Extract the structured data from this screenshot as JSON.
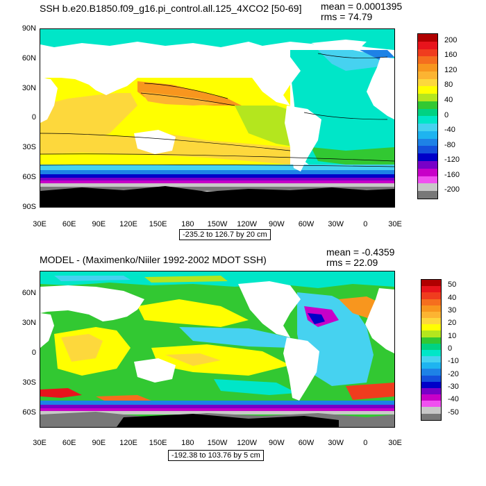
{
  "panels": [
    {
      "title": "SSH b.e20.B1850.f09_g16.pi_control.all.125_4XCO2 [50-69]",
      "mean": "mean = 0.0001395",
      "rms": "rms = 74.79",
      "lat_labels": [
        "90N",
        "60N",
        "30N",
        "0",
        "30S",
        "60S",
        "90S"
      ],
      "lon_labels": [
        "30E",
        "60E",
        "90E",
        "120E",
        "150E",
        "180",
        "150W",
        "120W",
        "90W",
        "60W",
        "30W",
        "0",
        "30E"
      ],
      "range_text": "-235.2 to 126.7 by 20 cm",
      "colorbar": {
        "labels": [
          "200",
          "160",
          "120",
          "80",
          "40",
          "0",
          "-40",
          "-80",
          "-120",
          "-160",
          "-200"
        ],
        "colors": [
          "#b00000",
          "#e8141c",
          "#f03c1e",
          "#f56e1e",
          "#f8961e",
          "#fcb432",
          "#fdd83c",
          "#ffff00",
          "#b4e61e",
          "#32c832",
          "#00d282",
          "#00e6c8",
          "#46d2f0",
          "#1eb4f0",
          "#1e82e6",
          "#1450dc",
          "#0000c8",
          "#7800c8",
          "#c800c8",
          "#f050f0",
          "#c8c8c8",
          "#787878"
        ]
      }
    },
    {
      "title": "MODEL - (Maximenko/Niiler 1992-2002 MDOT SSH)",
      "mean": "mean = -0.4359",
      "rms": "rms = 22.09",
      "lat_labels": [
        "60N",
        "30N",
        "0",
        "30S",
        "60S"
      ],
      "lon_labels": [
        "30E",
        "60E",
        "90E",
        "120E",
        "150E",
        "180",
        "150W",
        "120W",
        "90W",
        "60W",
        "30W",
        "0",
        "30E"
      ],
      "range_text": "-192.38 to 103.76 by 5 cm",
      "colorbar": {
        "labels": [
          "50",
          "40",
          "30",
          "20",
          "10",
          "0",
          "-10",
          "-20",
          "-30",
          "-40",
          "-50"
        ],
        "colors": [
          "#b00000",
          "#e8141c",
          "#f03c1e",
          "#f56e1e",
          "#f8961e",
          "#fcb432",
          "#fdd83c",
          "#ffff00",
          "#b4e61e",
          "#32c832",
          "#00d282",
          "#00e6c8",
          "#46d2f0",
          "#1eb4f0",
          "#1e82e6",
          "#1450dc",
          "#0000c8",
          "#7800c8",
          "#c800c8",
          "#f050f0",
          "#c8c8c8",
          "#787878"
        ]
      }
    }
  ]
}
